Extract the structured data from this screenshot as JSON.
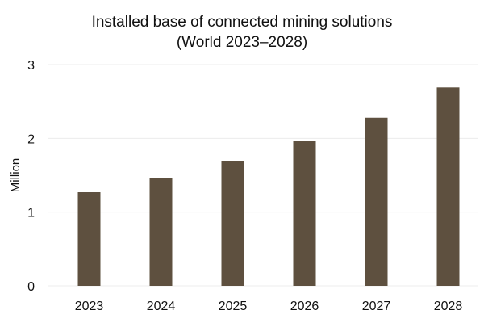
{
  "colors": {
    "bar": "#5e503f",
    "grid": "#ececec",
    "text": "#111111",
    "background": "#ffffff"
  },
  "chart_data": {
    "type": "bar",
    "title_lines": [
      "Installed base of connected mining solutions",
      "(World 2023–2028)"
    ],
    "xlabel": "",
    "ylabel": "Million",
    "categories": [
      "2023",
      "2024",
      "2025",
      "2026",
      "2027",
      "2028"
    ],
    "values": [
      1.27,
      1.46,
      1.69,
      1.96,
      2.28,
      2.69
    ],
    "ylim": [
      0,
      3
    ],
    "yticks": [
      0,
      1,
      2,
      3
    ],
    "grid": true,
    "legend": "none"
  }
}
